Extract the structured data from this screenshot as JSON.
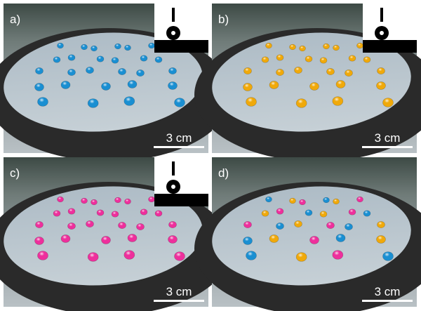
{
  "panels": [
    {
      "label": "a)",
      "scale_bar": "3 cm"
    },
    {
      "label": "b)",
      "scale_bar": "3 cm"
    },
    {
      "label": "c)",
      "scale_bar": "3 cm"
    },
    {
      "label": "d)",
      "scale_bar": "3 cm"
    }
  ]
}
